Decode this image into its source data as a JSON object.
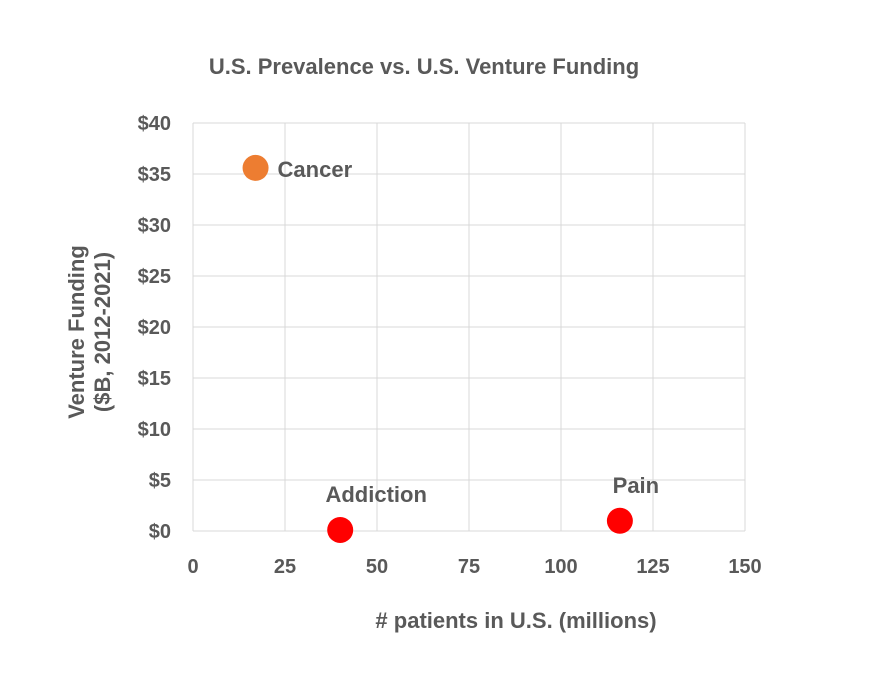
{
  "chart_data": {
    "type": "scatter",
    "title": "U.S. Prevalence vs. U.S. Venture Funding",
    "xlabel": "# patients in U.S. (millions)",
    "ylabel_lines": [
      "Venture Funding",
      "($B, 2012-2021)"
    ],
    "xlim": [
      0,
      150
    ],
    "ylim": [
      0,
      40
    ],
    "xticks": [
      0,
      25,
      50,
      75,
      100,
      125,
      150
    ],
    "yticks": [
      0,
      5,
      10,
      15,
      20,
      25,
      30,
      35,
      40
    ],
    "ytick_labels": [
      "$0",
      "$5",
      "$10",
      "$15",
      "$20",
      "$25",
      "$30",
      "$35",
      "$40"
    ],
    "grid": true,
    "points": [
      {
        "label": "Cancer",
        "x": 17,
        "y": 35.6,
        "color": "#ED7D31",
        "label_pos": "right"
      },
      {
        "label": "Addiction",
        "x": 40,
        "y": 0.1,
        "color": "#FF0000",
        "label_pos": "above"
      },
      {
        "label": "Pain",
        "x": 116,
        "y": 1.0,
        "color": "#FF0000",
        "label_pos": "above"
      }
    ]
  }
}
